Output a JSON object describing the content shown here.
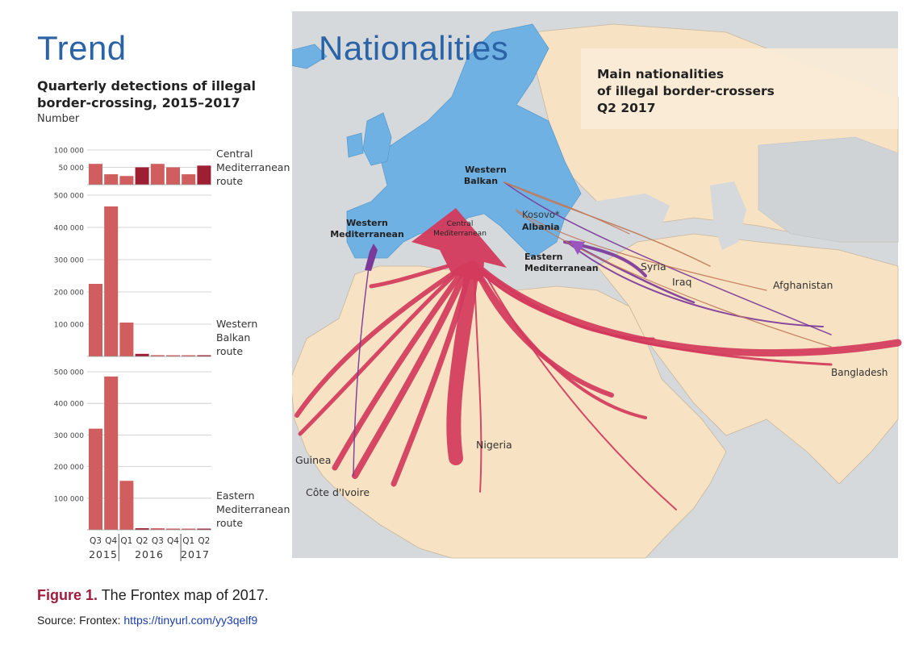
{
  "trend": {
    "heading": "Trend",
    "subtitle_line1": "Quarterly detections of illegal",
    "subtitle_line2": "border-crossing, 2015–2017",
    "unit": "Number"
  },
  "nationalities": {
    "heading": "Nationalities",
    "panel_line1": "Main nationalities",
    "panel_line2": "of illegal border-crossers",
    "panel_line3": "Q2 2017"
  },
  "chart_data": [
    {
      "type": "bar",
      "name_label": [
        "Central",
        "Mediterranean",
        "route"
      ],
      "categories": [
        "Q3",
        "Q4",
        "Q1",
        "Q2",
        "Q3",
        "Q4",
        "Q1",
        "Q2"
      ],
      "values": [
        60000,
        30000,
        25000,
        50000,
        60000,
        50000,
        30000,
        55000
      ],
      "highlight": [
        false,
        false,
        false,
        true,
        false,
        false,
        false,
        true
      ],
      "ylim": [
        0,
        100000
      ],
      "yticks": [
        "50 000",
        "100 000"
      ],
      "ytick_values": [
        50000,
        100000
      ]
    },
    {
      "type": "bar",
      "name_label": [
        "Western",
        "Balkan",
        "route"
      ],
      "categories": [
        "Q3",
        "Q4",
        "Q1",
        "Q2",
        "Q3",
        "Q4",
        "Q1",
        "Q2"
      ],
      "values": [
        225000,
        465000,
        105000,
        8000,
        4000,
        3000,
        2000,
        2500
      ],
      "highlight": [
        false,
        false,
        false,
        true,
        false,
        false,
        false,
        true
      ],
      "ylim": [
        0,
        500000
      ],
      "yticks": [
        "100 000",
        "200 000",
        "300 000",
        "400 000",
        "500 000"
      ],
      "ytick_values": [
        100000,
        200000,
        300000,
        400000,
        500000
      ]
    },
    {
      "type": "bar",
      "name_label": [
        "Eastern",
        "Mediterranean",
        "route"
      ],
      "categories": [
        "Q3",
        "Q4",
        "Q1",
        "Q2",
        "Q3",
        "Q4",
        "Q1",
        "Q2"
      ],
      "values": [
        320000,
        485000,
        155000,
        5000,
        5000,
        4000,
        3000,
        3000
      ],
      "highlight": [
        false,
        false,
        false,
        true,
        false,
        false,
        false,
        true
      ],
      "ylim": [
        0,
        500000
      ],
      "yticks": [
        "100 000",
        "200 000",
        "300 000",
        "400 000",
        "500 000"
      ],
      "ytick_values": [
        100000,
        200000,
        300000,
        400000,
        500000
      ]
    }
  ],
  "years": [
    "2015",
    "2016",
    "2017"
  ],
  "map_labels": {
    "western_mediterranean": [
      "Western",
      "Mediterranean"
    ],
    "central_mediterranean": [
      "Central",
      "Mediterranean"
    ],
    "western_balkan": [
      "Western",
      "Balkan"
    ],
    "kosovo": "Kosovo*",
    "albania": "Albania",
    "eastern_mediterranean": [
      "Eastern",
      "Mediterranean"
    ],
    "syria": "Syria",
    "iraq": "Iraq",
    "afghanistan": "Afghanistan",
    "bangladesh": "Bangladesh",
    "nigeria": "Nigeria",
    "guinea": "Guinea",
    "cote_divoire": "Côte d'Ivoire"
  },
  "caption": {
    "figure_label": "Figure 1.",
    "figure_text": " The Frontex map of 2017.",
    "source_prefix": "Source: Frontex: ",
    "source_link": "https://tinyurl.com/yy3qelf9"
  },
  "colors": {
    "bar": "#d05e5e",
    "bar_highlight": "#9e1e32",
    "eu": "#6fb1e3",
    "land": "#f7e2c3",
    "sea": "#d7dadc",
    "arrow_red": "#d33a5c",
    "arrow_purple": "#7b3a9a",
    "heading_blue": "#2a63a6"
  }
}
